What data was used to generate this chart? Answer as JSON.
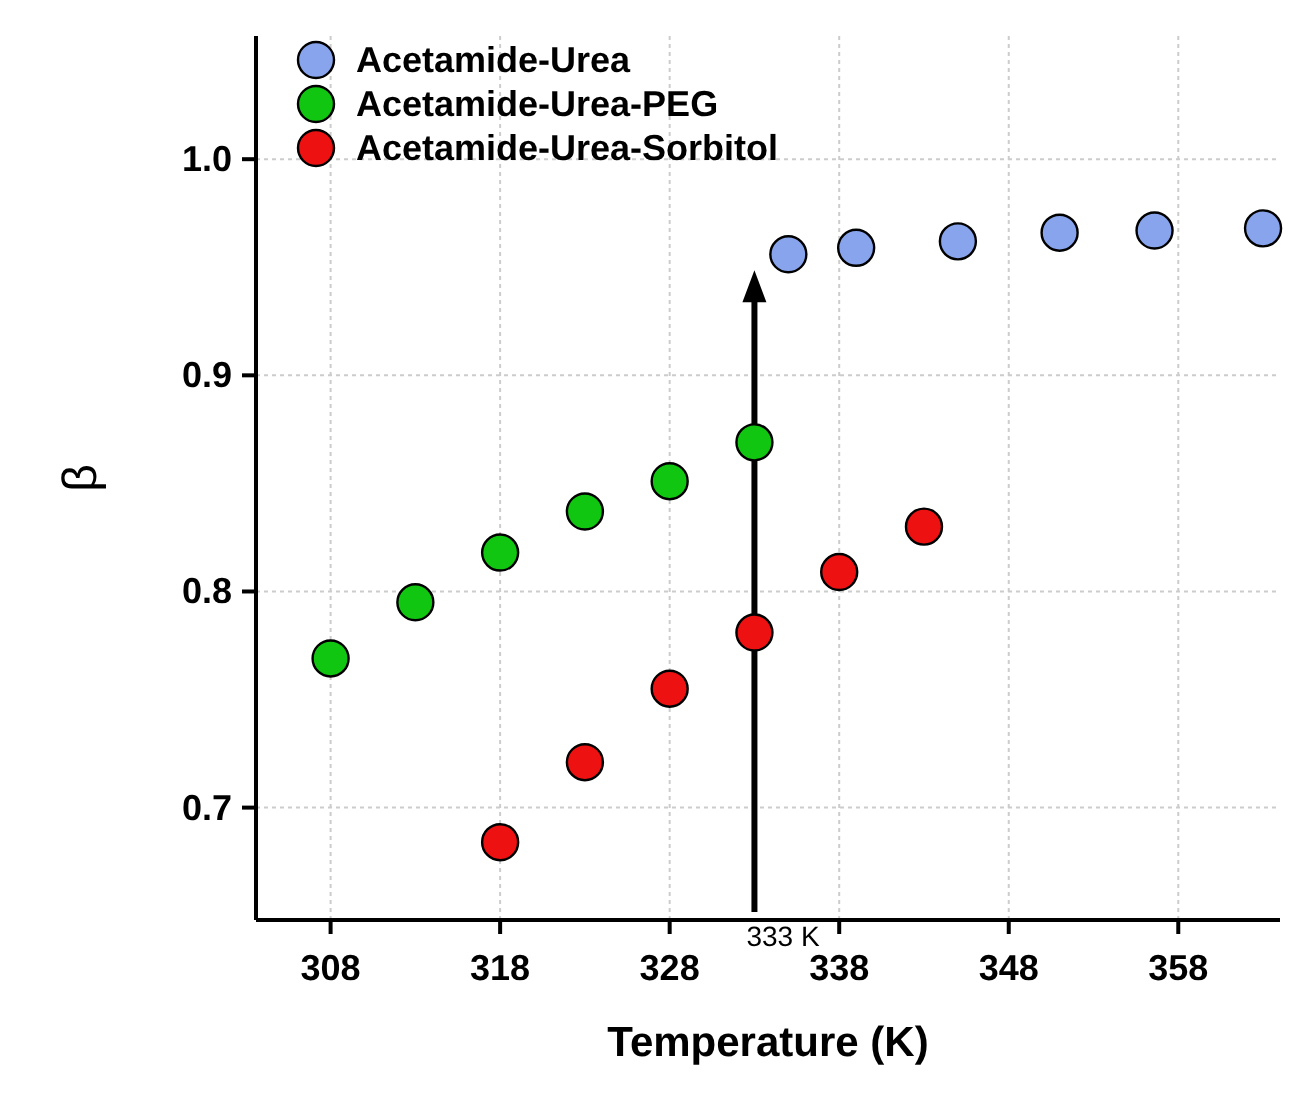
{
  "chart_data": {
    "type": "scatter",
    "xlabel": "Temperature (K)",
    "ylabel": "β",
    "xlim": [
      303.6,
      364
    ],
    "ylim": [
      0.648,
      1.057
    ],
    "xticks": [
      308,
      318,
      328,
      338,
      348,
      358
    ],
    "yticks": [
      0.7,
      0.8,
      0.9,
      {
        "value": 1,
        "label": "1.0"
      }
    ],
    "grid": true,
    "legend": "top left",
    "marker": "circle",
    "series": [
      {
        "name": "Acetamide-Urea",
        "color": "#87a4ec",
        "x": [
          335,
          339,
          345,
          351,
          356.6,
          363
        ],
        "values": [
          0.956,
          0.959,
          0.962,
          0.966,
          0.967,
          0.968
        ]
      },
      {
        "name": "Acetamide-Urea-PEG",
        "color": "#11c611",
        "x": [
          308,
          313,
          318,
          323,
          328,
          333
        ],
        "values": [
          0.769,
          0.795,
          0.818,
          0.837,
          0.851,
          0.869
        ]
      },
      {
        "name": "Acetamide-Urea-Sorbitol",
        "color": "#ee1111",
        "x": [
          318,
          323,
          328,
          333,
          338,
          343
        ],
        "values": [
          0.684,
          0.721,
          0.755,
          0.781,
          0.809,
          0.83
        ]
      }
    ],
    "ref_lines": [
      {
        "axis": "x",
        "value": 333,
        "label": "333 K"
      }
    ]
  }
}
